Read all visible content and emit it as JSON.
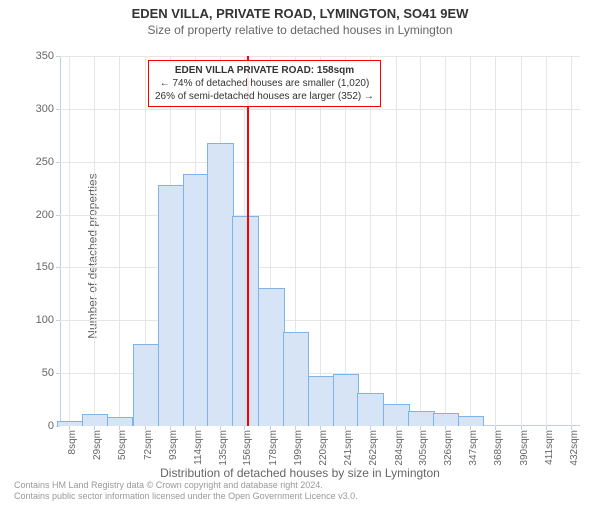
{
  "title": "EDEN VILLA, PRIVATE ROAD, LYMINGTON, SO41 9EW",
  "subtitle": "Size of property relative to detached houses in Lymington",
  "ylabel": "Number of detached properties",
  "xlabel": "Distribution of detached houses by size in Lymington",
  "credits_line1": "Contains HM Land Registry data © Crown copyright and database right 2024.",
  "credits_line2": "Contains public sector information licensed under the Open Government Licence v3.0.",
  "annotation": {
    "line1": "EDEN VILLA PRIVATE ROAD: 158sqm",
    "line2": "← 74% of detached houses are smaller (1,020)",
    "line3": "26% of semi-detached houses are larger (352) →"
  },
  "chart": {
    "type": "histogram",
    "background_color": "#ffffff",
    "grid_color": "#e6e6e6",
    "axis_color": "#c0d0e0",
    "bar_fill": "#d6e4f5",
    "bar_border": "#7cb5ec",
    "marker_color": "#ff0000",
    "marker_x": 158,
    "xlim": [
      0,
      440
    ],
    "ylim": [
      0,
      350
    ],
    "ytick_step": 50,
    "xticks": [
      8,
      29,
      50,
      72,
      93,
      114,
      135,
      156,
      178,
      199,
      220,
      241,
      262,
      284,
      305,
      326,
      347,
      368,
      390,
      411,
      432
    ],
    "xtick_suffix": "sqm",
    "bars": [
      {
        "x": 8,
        "v": 4
      },
      {
        "x": 29,
        "v": 10
      },
      {
        "x": 50,
        "v": 8
      },
      {
        "x": 72,
        "v": 77
      },
      {
        "x": 93,
        "v": 227
      },
      {
        "x": 114,
        "v": 237
      },
      {
        "x": 135,
        "v": 267
      },
      {
        "x": 156,
        "v": 198
      },
      {
        "x": 178,
        "v": 130
      },
      {
        "x": 199,
        "v": 88
      },
      {
        "x": 220,
        "v": 46
      },
      {
        "x": 241,
        "v": 48
      },
      {
        "x": 262,
        "v": 30
      },
      {
        "x": 284,
        "v": 20
      },
      {
        "x": 305,
        "v": 13
      },
      {
        "x": 326,
        "v": 11
      },
      {
        "x": 347,
        "v": 9
      },
      {
        "x": 368,
        "v": 0
      },
      {
        "x": 390,
        "v": 0
      },
      {
        "x": 411,
        "v": 0
      },
      {
        "x": 432,
        "v": 0
      }
    ],
    "title_fontsize": 13,
    "subtitle_fontsize": 12,
    "label_fontsize": 12,
    "tick_fontsize": 11,
    "annotation_fontsize": 10,
    "bar_width_ratio": 0.98
  }
}
